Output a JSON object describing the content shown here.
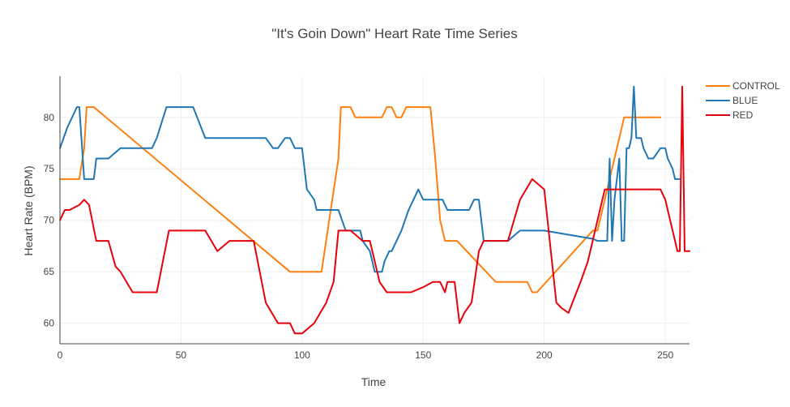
{
  "chart_data": {
    "type": "line",
    "title": "\"It's Goin Down\" Heart Rate Time Series",
    "xlabel": "Time",
    "ylabel": "Heart Rate (BPM)",
    "xlim": [
      0,
      260
    ],
    "ylim": [
      58,
      84
    ],
    "xticks": [
      0,
      50,
      100,
      150,
      200,
      250
    ],
    "yticks": [
      60,
      65,
      70,
      75,
      80
    ],
    "grid": true,
    "legend_position": "top-right",
    "series": [
      {
        "name": "CONTROL",
        "color": "#ff7f0e",
        "x": [
          0,
          8,
          10,
          11,
          14,
          95,
          97,
          108,
          115,
          116,
          118,
          120,
          122,
          128,
          133,
          135,
          137,
          139,
          141,
          143,
          145,
          147,
          150,
          153,
          155,
          157,
          159,
          160,
          161,
          163,
          164,
          166,
          168,
          170,
          172,
          180,
          190,
          193,
          195,
          197,
          220,
          222,
          233,
          235,
          248
        ],
        "y": [
          74,
          74,
          77,
          81,
          81,
          65,
          65,
          65,
          76,
          81,
          81,
          81,
          80,
          80,
          80,
          81,
          81,
          80,
          80,
          81,
          81,
          81,
          81,
          81,
          76,
          70,
          68,
          68,
          68,
          68,
          68,
          67.5,
          67,
          66.5,
          66,
          64,
          64,
          64,
          63,
          63,
          69,
          69,
          80,
          80,
          80
        ]
      },
      {
        "name": "BLUE",
        "color": "#1f77b4",
        "x": [
          0,
          3,
          7,
          8,
          10,
          11,
          13,
          14,
          15,
          20,
          25,
          30,
          38,
          40,
          44,
          48,
          50,
          55,
          60,
          63,
          75,
          85,
          88,
          90,
          93,
          95,
          97,
          100,
          101,
          102,
          105,
          106,
          108,
          110,
          115,
          118,
          121,
          124,
          125,
          128,
          130,
          131,
          133,
          134,
          136,
          137,
          139,
          141,
          144,
          146,
          148,
          150,
          152,
          154,
          158,
          160,
          165,
          167,
          169,
          171,
          173,
          175,
          180,
          183,
          185,
          190,
          200,
          210,
          215,
          220,
          222,
          225,
          226,
          227,
          228,
          229,
          231,
          232,
          233,
          234,
          235,
          236,
          237,
          238,
          239,
          240,
          241,
          243,
          245,
          248,
          250,
          251,
          253,
          254,
          255,
          256
        ],
        "y": [
          77,
          79,
          81,
          81,
          74,
          74,
          74,
          74,
          76,
          76,
          77,
          77,
          77,
          78,
          81,
          81,
          81,
          81,
          78,
          78,
          78,
          78,
          77,
          77,
          78,
          78,
          77,
          77,
          75,
          73,
          72,
          71,
          71,
          71,
          71,
          69,
          69,
          69,
          68,
          67,
          65,
          65,
          65,
          66,
          67,
          67,
          68,
          69,
          71,
          72,
          73,
          72,
          72,
          72,
          72,
          71,
          71,
          71,
          71,
          72,
          72,
          68,
          68,
          68,
          68,
          69,
          69,
          68.6,
          68.4,
          68.2,
          68,
          68,
          68,
          76,
          68,
          72,
          76,
          68,
          68,
          77,
          77,
          78,
          83,
          78,
          78,
          78,
          77,
          76,
          76,
          77,
          77,
          76,
          75,
          74,
          74,
          74
        ]
      },
      {
        "name": "RED",
        "color": "#e8000b",
        "x": [
          0,
          2,
          4,
          8,
          10,
          12,
          15,
          20,
          23,
          25,
          30,
          40,
          45,
          48,
          55,
          60,
          65,
          70,
          75,
          80,
          85,
          90,
          95,
          97,
          100,
          105,
          110,
          113,
          115,
          120,
          125,
          128,
          132,
          135,
          138,
          140,
          145,
          150,
          154,
          157,
          159,
          160,
          162,
          163,
          165,
          167,
          170,
          173,
          175,
          178,
          180,
          185,
          190,
          195,
          200,
          205,
          207,
          210,
          215,
          218,
          225,
          228,
          230,
          235,
          240,
          245,
          248,
          250,
          255,
          256,
          257,
          258,
          259,
          260
        ],
        "y": [
          70,
          71,
          71,
          71.5,
          72,
          71.5,
          68,
          68,
          65.5,
          65,
          63,
          63,
          69,
          69,
          69,
          69,
          67,
          68,
          68,
          68,
          62,
          60,
          60,
          59,
          59,
          60,
          62,
          64,
          69,
          69,
          68,
          68,
          64,
          63,
          63,
          63,
          63,
          63.5,
          64,
          64,
          63,
          64,
          64,
          64,
          60,
          61,
          62,
          67,
          68,
          68,
          68,
          68,
          72,
          74,
          73,
          62,
          61.5,
          61,
          64,
          66,
          73,
          73,
          73,
          73,
          73,
          73,
          73,
          72,
          67,
          67,
          83,
          67,
          67,
          67
        ]
      }
    ]
  }
}
